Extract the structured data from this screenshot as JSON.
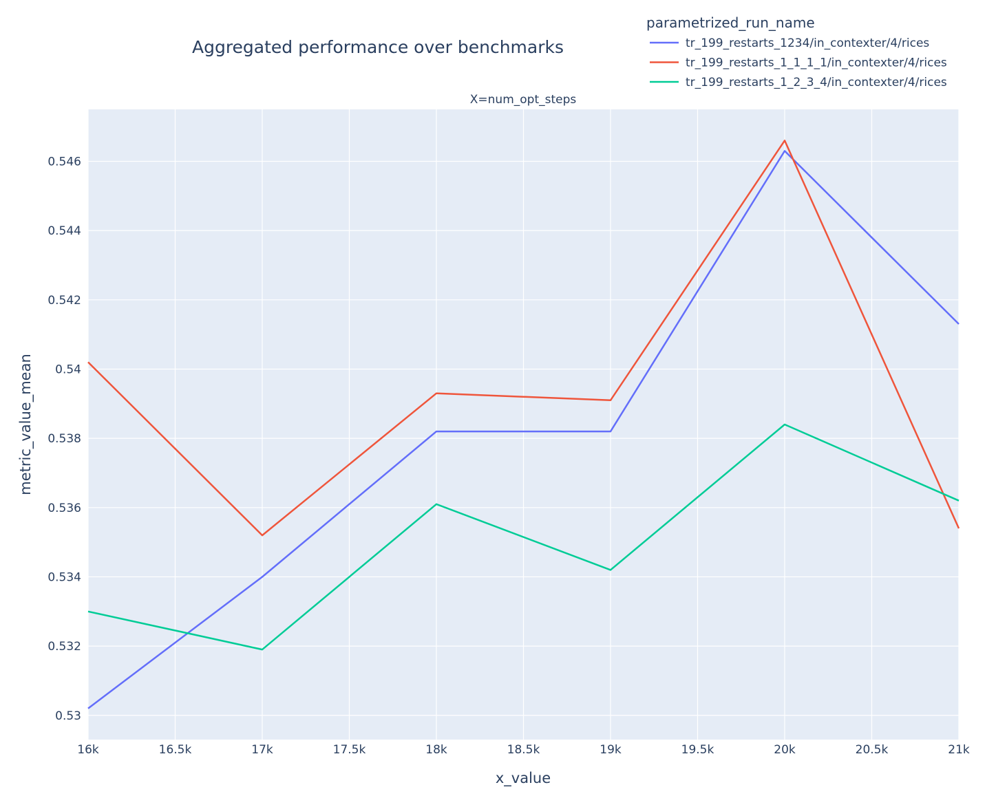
{
  "chart_data": {
    "type": "line",
    "title": "Aggregated performance over benchmarks",
    "subtitle": "X=num_opt_steps",
    "xlabel": "x_value",
    "ylabel": "metric_value_mean",
    "xlim": [
      16000,
      21000
    ],
    "ylim": [
      0.5293,
      0.5475
    ],
    "x_ticks": [
      16000,
      16500,
      17000,
      17500,
      18000,
      18500,
      19000,
      19500,
      20000,
      20500,
      21000
    ],
    "x_tick_labels": [
      "16k",
      "16.5k",
      "17k",
      "17.5k",
      "18k",
      "18.5k",
      "19k",
      "19.5k",
      "20k",
      "20.5k",
      "21k"
    ],
    "y_ticks": [
      0.53,
      0.532,
      0.534,
      0.536,
      0.538,
      0.54,
      0.542,
      0.544,
      0.546
    ],
    "y_tick_labels": [
      "0.53",
      "0.532",
      "0.534",
      "0.536",
      "0.538",
      "0.54",
      "0.542",
      "0.544",
      "0.546"
    ],
    "x_breaks": [
      16000,
      17000,
      18000,
      19000,
      20000,
      21000
    ],
    "grid": true,
    "legend_title": "parametrized_run_name",
    "legend_position": "top-right",
    "background_color": "#e5ecf6",
    "grid_color": "#ffffff",
    "series": [
      {
        "name": "tr_199_restarts_1234/in_contexter/4/rices",
        "color": "#636efa",
        "x": [
          16000,
          17000,
          18000,
          19000,
          20000,
          21000
        ],
        "y": [
          0.5302,
          0.534,
          0.5382,
          0.5382,
          0.5463,
          0.5413
        ]
      },
      {
        "name": "tr_199_restarts_1_1_1_1/in_contexter/4/rices",
        "color": "#ef553b",
        "x": [
          16000,
          17000,
          18000,
          19000,
          20000,
          21000
        ],
        "y": [
          0.5402,
          0.5352,
          0.5393,
          0.5391,
          0.5466,
          0.5354
        ]
      },
      {
        "name": "tr_199_restarts_1_2_3_4/in_contexter/4/rices",
        "color": "#00cc96",
        "x": [
          16000,
          17000,
          18000,
          19000,
          20000,
          21000
        ],
        "y": [
          0.533,
          0.5319,
          0.5361,
          0.5342,
          0.5384,
          0.5362
        ]
      }
    ]
  }
}
